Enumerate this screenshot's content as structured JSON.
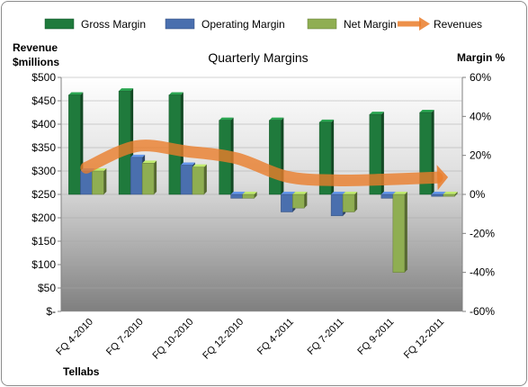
{
  "chart_data": {
    "type": "bar",
    "title": "Quarterly Margins",
    "left_axis_label": [
      "Revenue",
      "$millions"
    ],
    "right_axis_label": "Margin %",
    "footer": "Tellabs",
    "categories": [
      "FQ 4-2010",
      "FQ 7-2010",
      "FQ 10-2010",
      "FQ 12-2010",
      "FQ 4-2011",
      "FQ 7-2011",
      "FQ 9-2011",
      "FQ 12-2011"
    ],
    "left_ticks": [
      "$-",
      "$50",
      "$100",
      "$150",
      "$200",
      "$250",
      "$300",
      "$350",
      "$400",
      "$450",
      "$500"
    ],
    "right_ticks": [
      "-60%",
      "-40%",
      "-20%",
      "0%",
      "20%",
      "40%",
      "60%"
    ],
    "ylim_left": [
      0,
      500
    ],
    "ylim_right": [
      -60,
      60
    ],
    "legend_position": "top",
    "series": [
      {
        "name": "Gross Margin",
        "kind": "bar",
        "axis": "right",
        "color": "#1f7a3c",
        "values": [
          51,
          53,
          51,
          38,
          38,
          37,
          41,
          42
        ]
      },
      {
        "name": "Operating Margin",
        "kind": "bar",
        "axis": "right",
        "color": "#4a6fae",
        "values": [
          12,
          19,
          15,
          -2,
          -9,
          -11,
          -2,
          -1
        ]
      },
      {
        "name": "Net Margin",
        "kind": "bar",
        "axis": "right",
        "color": "#8fae52",
        "values": [
          12,
          16,
          14,
          -2,
          -7,
          -9,
          -40,
          -1
        ]
      },
      {
        "name": "Revenues",
        "kind": "line",
        "axis": "left",
        "color": "#ea7d2a",
        "values": [
          307,
          353,
          342,
          327,
          288,
          280,
          282,
          286
        ]
      }
    ]
  }
}
